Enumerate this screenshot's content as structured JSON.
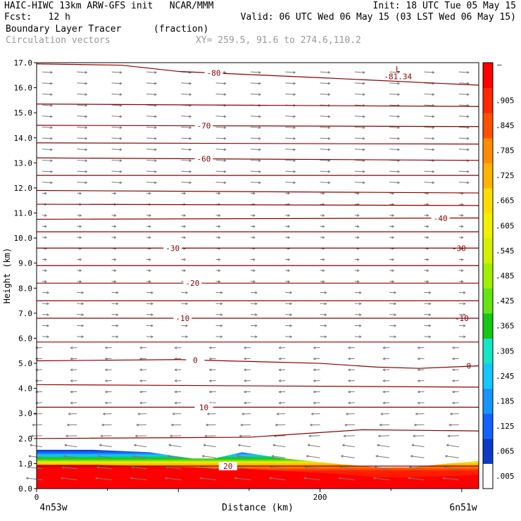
{
  "header": {
    "model_line": "HAIC-HIWC 13km ARW-GFS init   NCAR/MMM",
    "init": "Init: 18 UTC Tue 05 May 15",
    "fcst": "Fcst:   12 h",
    "valid": "Valid: 06 UTC Wed 06 May 15 (03 LST Wed 06 May 15)",
    "field": "Boundary Layer Tracer",
    "field_units": "(fraction)",
    "vectors": "Circulation vectors",
    "xy": "XY= 259.5, 91.6 to 274.6,110.2"
  },
  "chart_data": {
    "type": "heatmap",
    "ylabel": "Height (km)",
    "xlabel": "Distance (km)",
    "x_left_label": "4n53w",
    "x_right_label": "6n51w",
    "xlim": [
      0,
      312
    ],
    "ylim": [
      0,
      17
    ],
    "x_ticks": [
      "0",
      "200"
    ],
    "x_tick_values": [
      0,
      200
    ],
    "y_ticks": [
      "0.0",
      "1.0",
      "2.0",
      "3.0",
      "4.0",
      "5.0",
      "6.0",
      "7.0",
      "8.0",
      "9.0",
      "10.0",
      "11.0",
      "12.0",
      "13.0",
      "14.0",
      "15.0",
      "16.0",
      "17.0"
    ],
    "y_tick_values": [
      0,
      1,
      2,
      3,
      4,
      5,
      6,
      7,
      8,
      9,
      10,
      11,
      12,
      13,
      14,
      15,
      16,
      17
    ],
    "colorbar": {
      "labels": [
        ".005",
        ".065",
        ".125",
        ".185",
        ".245",
        ".305",
        ".365",
        ".425",
        ".485",
        ".545",
        ".605",
        ".665",
        ".725",
        ".785",
        ".845",
        ".905"
      ],
      "colors": [
        "#ffffff",
        "#0a3cc8",
        "#1460ff",
        "#1496ff",
        "#14c8ff",
        "#14e6c8",
        "#14c814",
        "#64e614",
        "#a0f000",
        "#d2f000",
        "#f0f000",
        "#ffdc00",
        "#ffb400",
        "#ff8c00",
        "#ff5000",
        "#ff2800",
        "#ff0000"
      ]
    },
    "tracer_profile": {
      "x_km": [
        0,
        40,
        80,
        110,
        125,
        145,
        175,
        210,
        240,
        265,
        290,
        312
      ],
      "layer_top_km": [
        1.55,
        1.55,
        1.45,
        1.2,
        1.2,
        1.45,
        1.2,
        1.0,
        0.85,
        0.85,
        1.0,
        1.1
      ],
      "core_top_km": [
        0.95,
        0.95,
        0.9,
        0.85,
        0.8,
        0.8,
        0.7,
        0.6,
        0.45,
        0.45,
        0.5,
        0.55
      ]
    },
    "contours": {
      "color": "#8b0000",
      "series": [
        {
          "x_km": [
            0,
            60,
            100,
            200,
            312
          ],
          "y_km": [
            16.95,
            16.9,
            16.65,
            16.4,
            16.1
          ],
          "label": "-80",
          "label_x_km": 125
        },
        {
          "x_km": [
            0,
            312
          ],
          "y_km": [
            15.35,
            15.25
          ]
        },
        {
          "x_km": [
            0,
            312
          ],
          "y_km": [
            14.5,
            14.45
          ],
          "label": "-70",
          "label_x_km": 118
        },
        {
          "x_km": [
            0,
            312
          ],
          "y_km": [
            13.8,
            13.75
          ]
        },
        {
          "x_km": [
            0,
            312
          ],
          "y_km": [
            13.2,
            13.1
          ],
          "label": "-60",
          "label_x_km": 118
        },
        {
          "x_km": [
            0,
            312
          ],
          "y_km": [
            12.5,
            12.5
          ]
        },
        {
          "x_km": [
            0,
            312
          ],
          "y_km": [
            11.9,
            11.8
          ]
        },
        {
          "x_km": [
            0,
            312
          ],
          "y_km": [
            11.35,
            11.3
          ]
        },
        {
          "x_km": [
            0,
            312
          ],
          "y_km": [
            10.75,
            10.8
          ],
          "label": "-40",
          "label_x_km": 285
        },
        {
          "x_km": [
            0,
            312
          ],
          "y_km": [
            10.25,
            10.25
          ]
        },
        {
          "x_km": [
            0,
            312
          ],
          "y_km": [
            9.6,
            9.6
          ],
          "label": "-30",
          "label_x_km": 96
        },
        {
          "x_km": [
            0,
            312
          ],
          "y_km": [
            8.9,
            8.9
          ]
        },
        {
          "x_km": [
            0,
            312
          ],
          "y_km": [
            8.2,
            8.2
          ],
          "label": "-20",
          "label_x_km": 110
        },
        {
          "x_km": [
            0,
            312
          ],
          "y_km": [
            7.5,
            7.5
          ]
        },
        {
          "x_km": [
            0,
            312
          ],
          "y_km": [
            6.8,
            6.8
          ],
          "label": "-10",
          "label_x_km": 103
        },
        {
          "x_km": [
            0,
            312
          ],
          "y_km": [
            5.85,
            5.85
          ]
        },
        {
          "x_km": [
            0,
            100,
            200,
            240,
            270,
            312
          ],
          "y_km": [
            5.1,
            5.15,
            5.0,
            4.85,
            4.8,
            4.9
          ],
          "label": "0",
          "label_x_km": 112
        },
        {
          "x_km": [
            0,
            312
          ],
          "y_km": [
            4.15,
            4.05
          ]
        },
        {
          "x_km": [
            0,
            312
          ],
          "y_km": [
            3.25,
            3.25
          ],
          "label": "10",
          "label_x_km": 118
        },
        {
          "x_km": [
            0,
            150,
            230,
            312
          ],
          "y_km": [
            2.0,
            2.05,
            2.35,
            2.3
          ]
        },
        {
          "x_km": [
            0,
            312
          ],
          "y_km": [
            0.9,
            0.9
          ],
          "label": "20",
          "label_x_km": 135
        }
      ]
    },
    "annotations": [
      {
        "text": "-81.34",
        "x_km": 255,
        "y_km": 16.45
      },
      {
        "text": "L",
        "x_km": 255,
        "y_km": 16.75
      },
      {
        "text": "-30",
        "x_km": 298,
        "y_km": 9.6
      },
      {
        "text": "-10",
        "x_km": 300,
        "y_km": 6.8
      },
      {
        "text": "0",
        "x_km": 305,
        "y_km": 4.9
      }
    ]
  }
}
